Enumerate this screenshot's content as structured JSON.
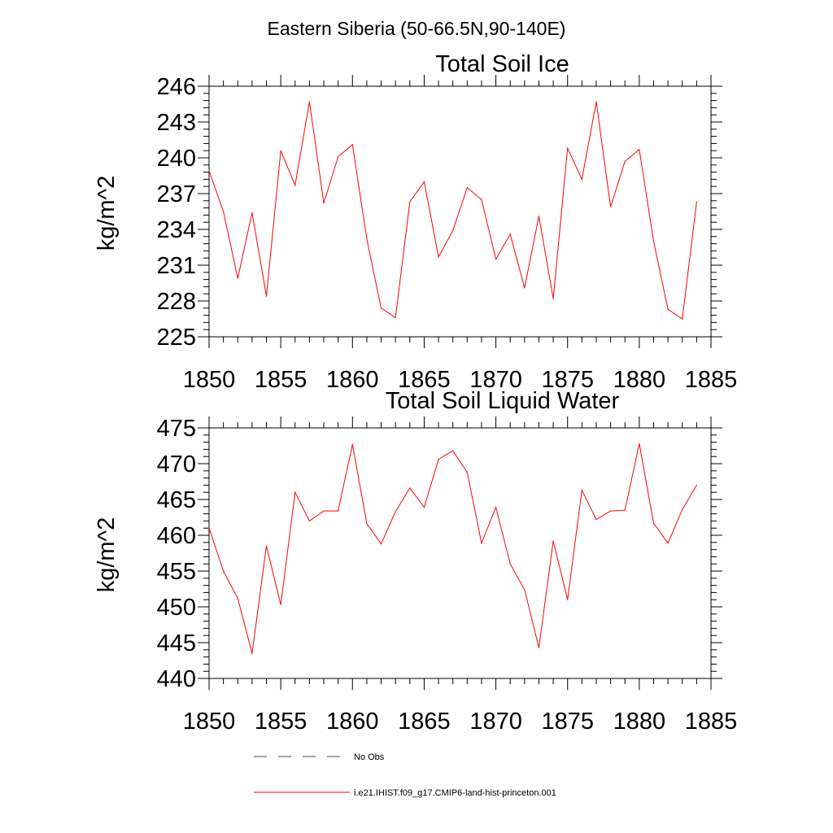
{
  "figure": {
    "title": "Eastern Siberia (50-66.5N,90-140E)"
  },
  "chart_data": [
    {
      "type": "line",
      "title": "Total Soil Ice",
      "xlabel": "",
      "ylabel": "kg/m^2",
      "xlim": [
        1850,
        1885
      ],
      "ylim": [
        225,
        246
      ],
      "xticks": [
        1850,
        1855,
        1860,
        1865,
        1870,
        1875,
        1880,
        1885
      ],
      "yticks": [
        225,
        228,
        231,
        234,
        237,
        240,
        243,
        246
      ],
      "grid": false,
      "x": [
        1850,
        1851,
        1852,
        1853,
        1854,
        1855,
        1856,
        1857,
        1858,
        1859,
        1860,
        1861,
        1862,
        1863,
        1864,
        1865,
        1866,
        1867,
        1868,
        1869,
        1870,
        1871,
        1872,
        1873,
        1874,
        1875,
        1876,
        1877,
        1878,
        1879,
        1880,
        1881,
        1882,
        1883,
        1884
      ],
      "series": [
        {
          "name": "i.e21.IHIST.f09_g17.CMIP6-land-hist-princeton.001",
          "color": "#ff0000",
          "values": [
            238.9,
            235.5,
            229.9,
            235.4,
            228.4,
            240.6,
            237.7,
            244.7,
            236.2,
            240.1,
            241.1,
            233.2,
            227.4,
            226.6,
            236.3,
            238.0,
            231.7,
            233.9,
            237.5,
            236.5,
            231.5,
            233.6,
            229.1,
            235.1,
            228.2,
            240.8,
            238.2,
            244.7,
            235.9,
            239.7,
            240.7,
            233.0,
            227.3,
            226.5,
            236.3
          ]
        }
      ]
    },
    {
      "type": "line",
      "title": "Total Soil Liquid Water",
      "xlabel": "",
      "ylabel": "kg/m^2",
      "xlim": [
        1850,
        1885
      ],
      "ylim": [
        440,
        475
      ],
      "xticks": [
        1850,
        1855,
        1860,
        1865,
        1870,
        1875,
        1880,
        1885
      ],
      "yticks": [
        440,
        445,
        450,
        455,
        460,
        465,
        470,
        475
      ],
      "grid": false,
      "x": [
        1850,
        1851,
        1852,
        1853,
        1854,
        1855,
        1856,
        1857,
        1858,
        1859,
        1860,
        1861,
        1862,
        1863,
        1864,
        1865,
        1866,
        1867,
        1868,
        1869,
        1870,
        1871,
        1872,
        1873,
        1874,
        1875,
        1876,
        1877,
        1878,
        1879,
        1880,
        1881,
        1882,
        1883,
        1884
      ],
      "series": [
        {
          "name": "i.e21.IHIST.f09_g17.CMIP6-land-hist-princeton.001",
          "color": "#ff0000",
          "values": [
            461.0,
            455.0,
            451.2,
            443.5,
            458.5,
            450.3,
            466.0,
            462.0,
            463.4,
            463.4,
            472.7,
            461.6,
            458.8,
            463.3,
            466.6,
            463.9,
            470.6,
            471.8,
            468.8,
            458.9,
            463.9,
            456.0,
            452.4,
            444.3,
            459.2,
            451.0,
            466.3,
            462.2,
            463.4,
            463.5,
            472.8,
            461.7,
            458.9,
            463.6,
            467.0
          ]
        }
      ]
    }
  ],
  "legend": {
    "placement": "bottom",
    "items": [
      {
        "label": "No Obs",
        "style": "dashed",
        "color": "#3a4a6a"
      },
      {
        "label": "i.e21.IHIST.f09_g17.CMIP6-land-hist-princeton.001",
        "style": "solid",
        "color": "#ff0000"
      }
    ]
  }
}
